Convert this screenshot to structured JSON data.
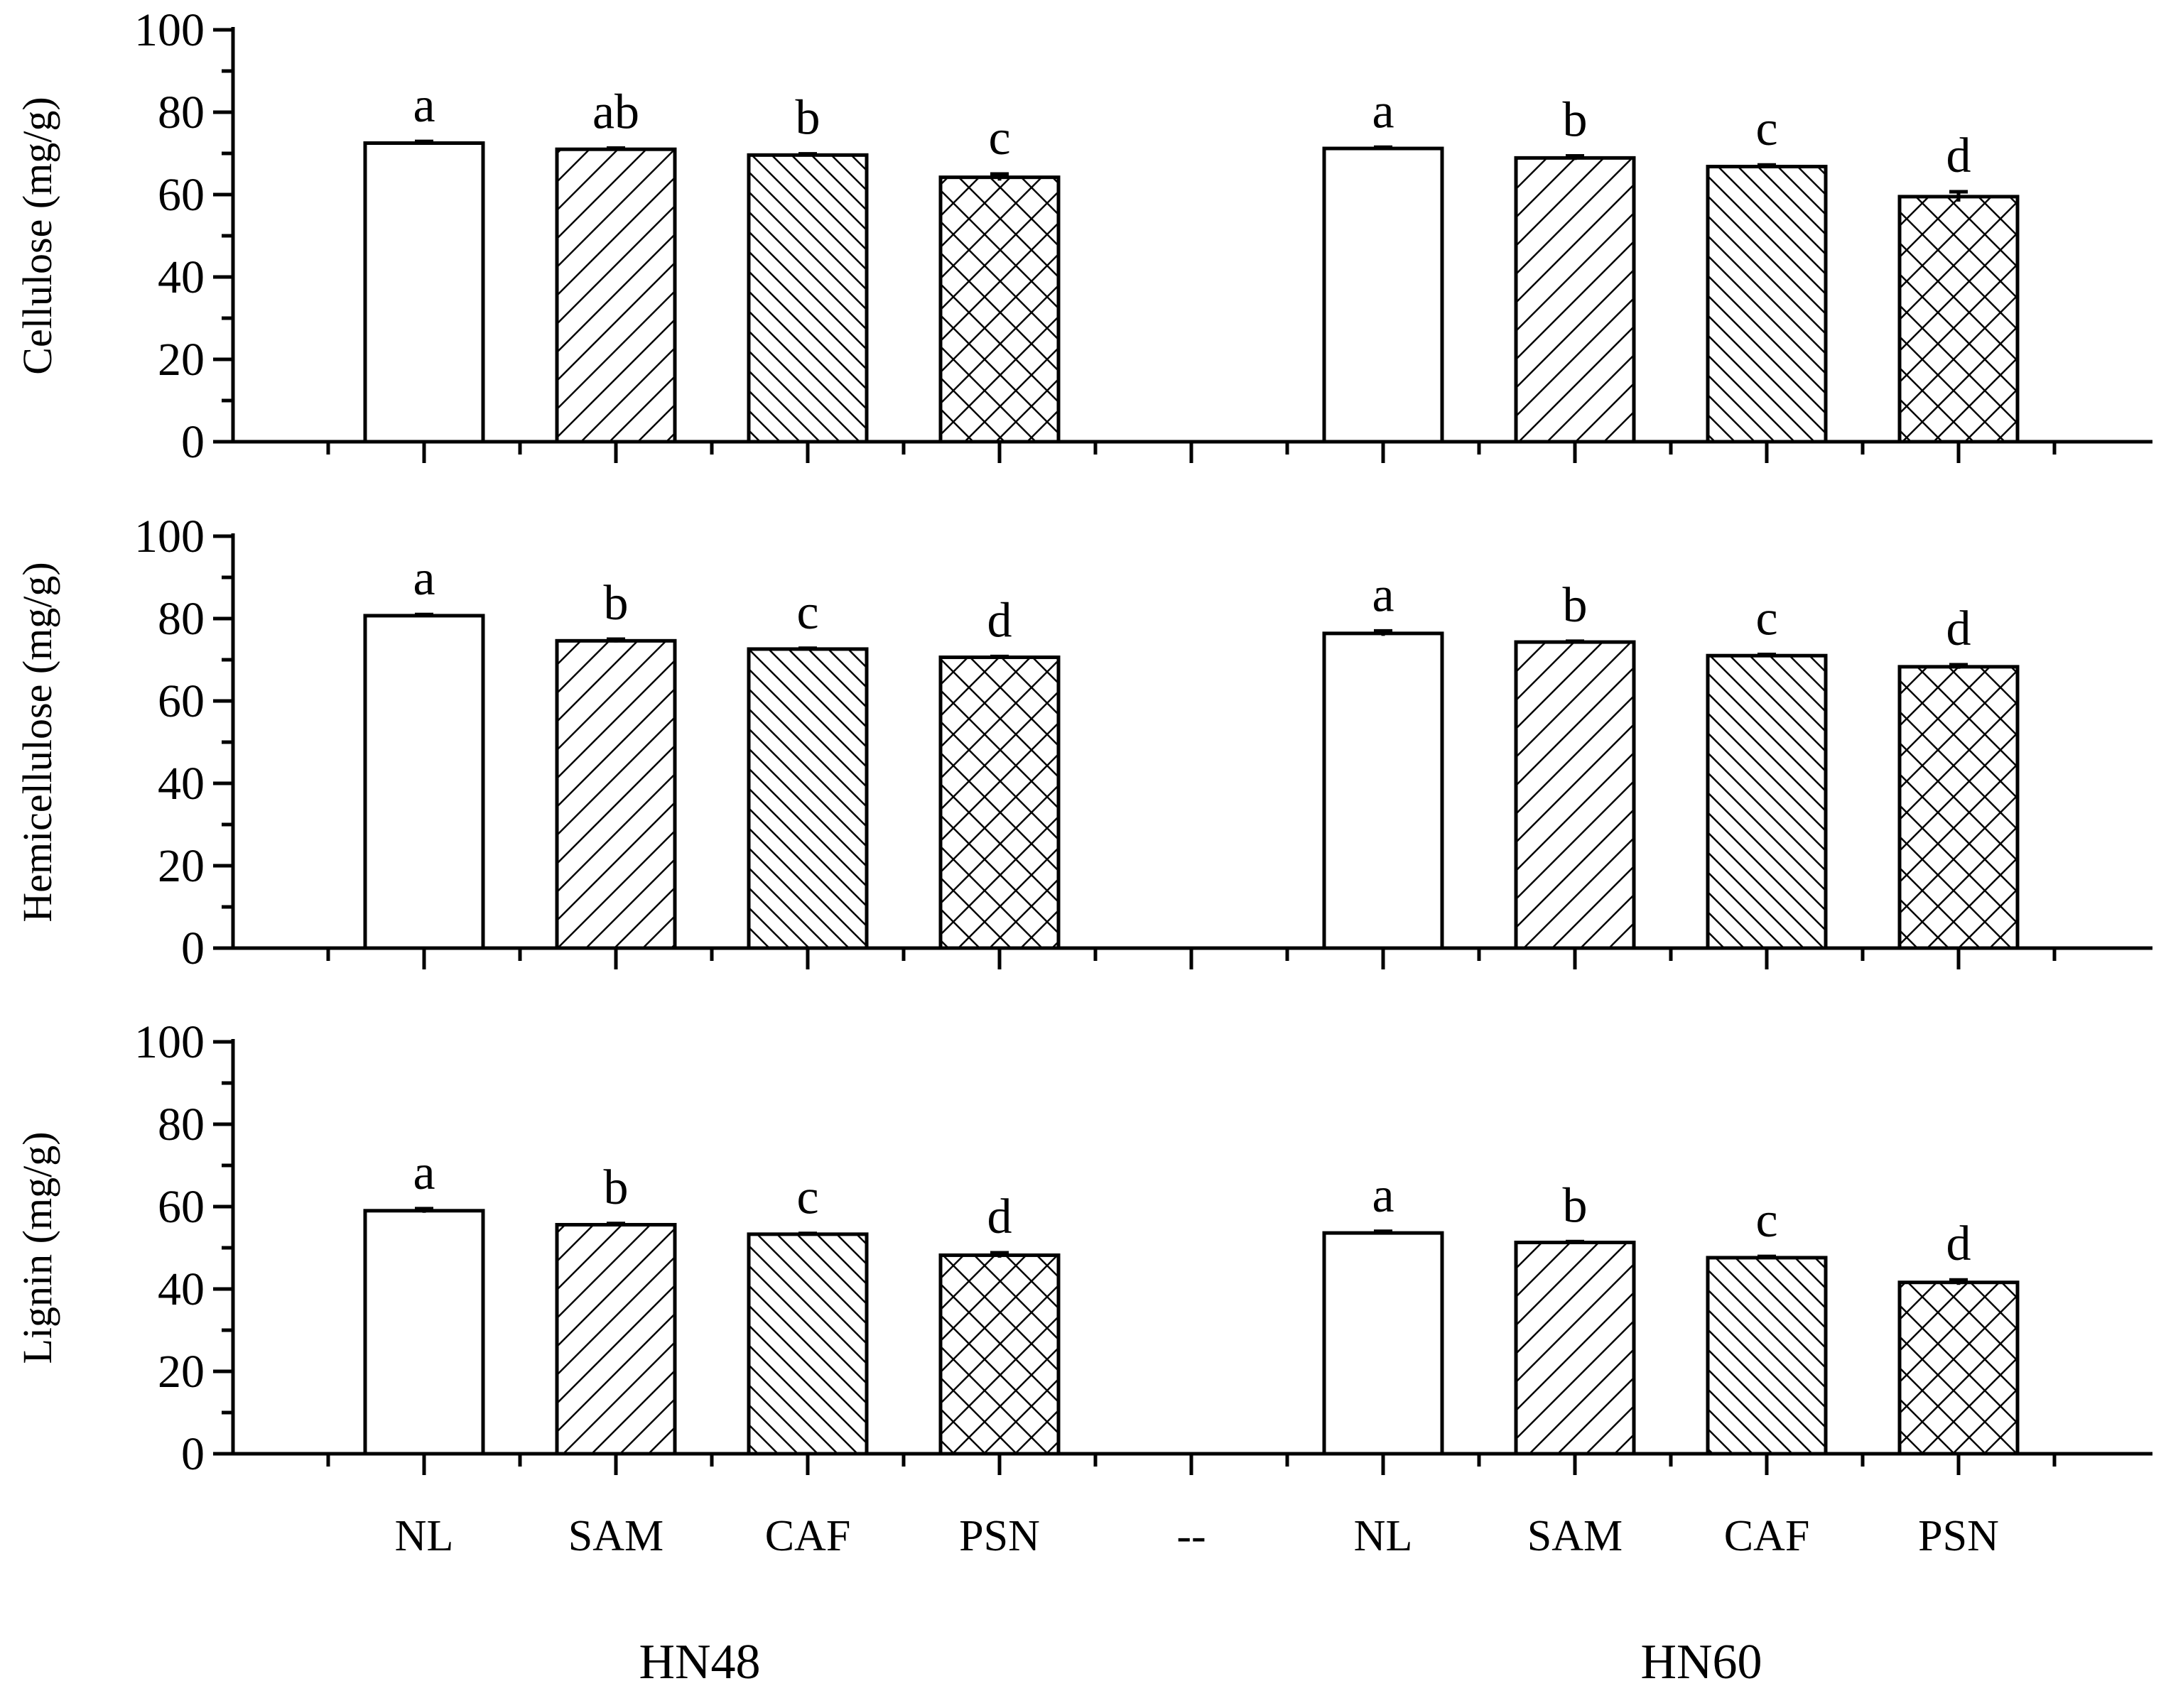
{
  "chart_data": {
    "type": "bar",
    "layout": "three vertically stacked panels sharing the x axis",
    "categories": [
      "NL",
      "SAM",
      "CAF",
      "PSN",
      "--",
      "NL",
      "SAM",
      "CAF",
      "PSN"
    ],
    "groups": [
      {
        "label": "HN48",
        "categories": [
          "NL",
          "SAM",
          "CAF",
          "PSN"
        ]
      },
      {
        "label": "HN60",
        "categories": [
          "NL",
          "SAM",
          "CAF",
          "PSN"
        ]
      }
    ],
    "patterns": {
      "NL": "none",
      "SAM": "forward-diagonal",
      "CAF": "backward-diagonal",
      "PSN": "crosshatch"
    },
    "panels": [
      {
        "ylabel": "Cellulose (mg/g)",
        "ylim": [
          0,
          100
        ],
        "yticks": [
          0,
          20,
          40,
          60,
          80,
          100
        ],
        "values": [
          72.5,
          71.0,
          69.6,
          64.2,
          null,
          71.2,
          68.9,
          66.8,
          59.5
        ],
        "errors": [
          0.4,
          0.3,
          0.3,
          0.8,
          null,
          0.3,
          0.5,
          0.4,
          1.2
        ],
        "letters": [
          "a",
          "ab",
          "b",
          "c",
          "",
          "a",
          "b",
          "c",
          "d"
        ]
      },
      {
        "ylabel": "Hemicellulose (mg/g)",
        "ylim": [
          0,
          100
        ],
        "yticks": [
          0,
          20,
          40,
          60,
          80,
          100
        ],
        "values": [
          80.7,
          74.6,
          72.6,
          70.6,
          null,
          76.4,
          74.3,
          71.0,
          68.3
        ],
        "errors": [
          0.3,
          0.4,
          0.2,
          0.2,
          null,
          0.6,
          0.2,
          0.3,
          0.5
        ],
        "letters": [
          "a",
          "b",
          "c",
          "d",
          "",
          "a",
          "b",
          "c",
          "d"
        ]
      },
      {
        "ylabel": "Lignin (mg/g)",
        "ylim": [
          0,
          100
        ],
        "yticks": [
          0,
          20,
          40,
          60,
          80,
          100
        ],
        "values": [
          59.0,
          55.6,
          53.3,
          48.2,
          null,
          53.6,
          51.3,
          47.6,
          41.6
        ],
        "errors": [
          0.5,
          0.3,
          0.2,
          0.6,
          null,
          0.4,
          0.2,
          0.3,
          0.6
        ],
        "letters": [
          "a",
          "b",
          "c",
          "d",
          "",
          "a",
          "b",
          "c",
          "d"
        ]
      }
    ]
  }
}
